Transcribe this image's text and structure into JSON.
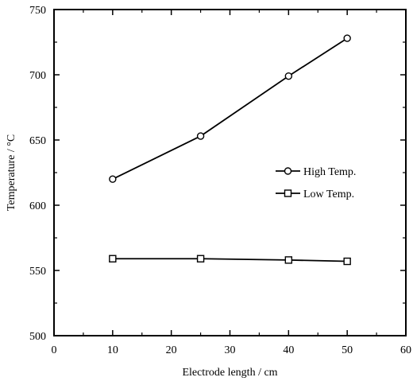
{
  "chart_data": {
    "type": "line",
    "title": "",
    "xlabel": "Electrode length / cm",
    "ylabel": "Temperature / °C",
    "xlim": [
      0,
      60
    ],
    "ylim": [
      500,
      750
    ],
    "x_ticks": [
      0,
      10,
      20,
      30,
      40,
      50,
      60
    ],
    "y_ticks": [
      500,
      550,
      600,
      650,
      700,
      750
    ],
    "grid": false,
    "legend_position": "right",
    "series": [
      {
        "name": "High Temp.",
        "marker": "circle",
        "x": [
          10,
          25,
          40,
          50
        ],
        "y": [
          620,
          653,
          699,
          728
        ]
      },
      {
        "name": "Low Temp.",
        "marker": "square",
        "x": [
          10,
          25,
          40,
          50
        ],
        "y": [
          559,
          559,
          558,
          557
        ]
      }
    ]
  }
}
